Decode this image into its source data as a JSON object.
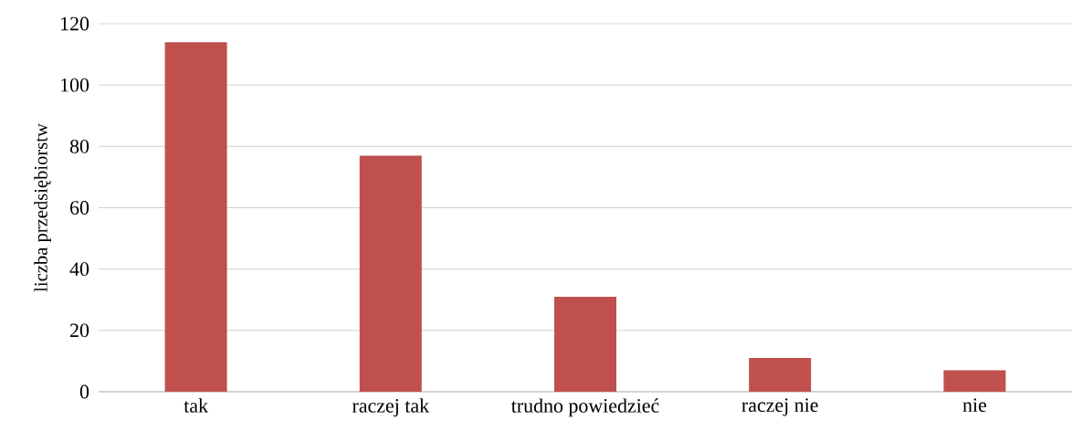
{
  "chart_data": {
    "type": "bar",
    "ylabel": "liczba przedsiębiorstw",
    "categories": [
      "tak",
      "raczej tak",
      "trudno powiedzieć",
      "raczej nie",
      "nie"
    ],
    "values": [
      114,
      77,
      31,
      11,
      7
    ],
    "color": "#c0504d",
    "ylim": [
      0,
      120
    ],
    "yticks": [
      0,
      20,
      40,
      60,
      80,
      100,
      120
    ],
    "grid": "y"
  }
}
